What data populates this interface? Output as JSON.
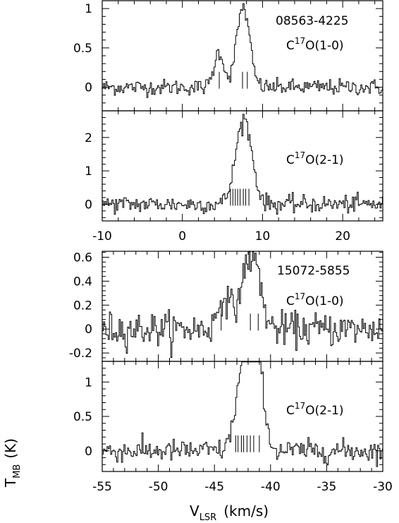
{
  "figure": {
    "y_axis_label_main": "T",
    "y_axis_label_sub": "MB",
    "y_axis_label_unit": "(K)",
    "x_axis_label_main": "V",
    "x_axis_label_sub": "LSR",
    "x_axis_label_unit": "(km/s)"
  },
  "chart_data": [
    {
      "type": "line",
      "source": "08563-4225",
      "label_pre": "C",
      "label_sup": "17",
      "label_post": "O(1-0)",
      "xlim": [
        -10,
        25
      ],
      "ylim": [
        -0.3,
        1.1
      ],
      "x_ticks": [
        -10,
        0,
        10,
        20
      ],
      "y_ticks": [
        0,
        0.5,
        1
      ],
      "y_tick_labels": [
        "0",
        "0.5",
        "1"
      ],
      "noise": 0.05,
      "gaussians": [
        {
          "center": 4.5,
          "amp": 0.45,
          "sigma": 0.6
        },
        {
          "center": 7.5,
          "amp": 1.02,
          "sigma": 0.8
        }
      ],
      "components": [
        4.6,
        7.5,
        8.1
      ]
    },
    {
      "type": "line",
      "source": "08563-4225",
      "label_pre": "C",
      "label_sup": "17",
      "label_post": "O(2-1)",
      "xlim": [
        -10,
        25
      ],
      "ylim": [
        -0.5,
        2.8
      ],
      "x_ticks": [
        -10,
        0,
        10,
        20
      ],
      "x_tick_labels": [
        "-10",
        "0",
        "10",
        "20"
      ],
      "y_ticks": [
        0,
        1,
        2
      ],
      "y_tick_labels": [
        "0",
        "1",
        "2"
      ],
      "noise": 0.13,
      "gaussians": [
        {
          "center": 7.6,
          "amp": 2.55,
          "sigma": 1.0
        }
      ],
      "components": [
        6.0,
        6.3,
        6.6,
        6.9,
        7.2,
        7.6,
        7.9,
        8.3
      ]
    },
    {
      "type": "line",
      "source": "15072-5855",
      "label_pre": "C",
      "label_sup": "17",
      "label_post": "O(1-0)",
      "xlim": [
        -55,
        -30
      ],
      "ylim": [
        -0.27,
        0.65
      ],
      "x_ticks": [
        -55,
        -50,
        -45,
        -40,
        -35,
        -30
      ],
      "y_ticks": [
        -0.2,
        0,
        0.2,
        0.4,
        0.6
      ],
      "y_tick_labels": [
        "-0.2",
        "0",
        "0.2",
        "0.4",
        "0.6"
      ],
      "noise": 0.07,
      "gaussians": [
        {
          "center": -44.2,
          "amp": 0.28,
          "sigma": 0.5
        },
        {
          "center": -42.0,
          "amp": 0.53,
          "sigma": 0.75
        },
        {
          "center": -41.2,
          "amp": 0.2,
          "sigma": 0.5
        }
      ],
      "components": [
        -44.4,
        -41.8,
        -41.1
      ]
    },
    {
      "type": "line",
      "source": "15072-5855",
      "label_pre": "C",
      "label_sup": "17",
      "label_post": "O(2-1)",
      "xlim": [
        -55,
        -30
      ],
      "ylim": [
        -0.3,
        1.3
      ],
      "x_ticks": [
        -55,
        -50,
        -45,
        -40,
        -35,
        -30
      ],
      "x_tick_labels": [
        "-55",
        "-50",
        "-45",
        "-40",
        "-35",
        "-30"
      ],
      "y_ticks": [
        0,
        0.5,
        1
      ],
      "y_tick_labels": [
        "0",
        "0.5",
        "1"
      ],
      "noise": 0.08,
      "gaussians": [
        {
          "center": -42.7,
          "amp": 0.7,
          "sigma": 0.6
        },
        {
          "center": -41.8,
          "amp": 1.15,
          "sigma": 0.7
        },
        {
          "center": -41.1,
          "amp": 0.8,
          "sigma": 0.5
        }
      ],
      "components": [
        -43.1,
        -42.9,
        -42.6,
        -42.4,
        -42.1,
        -41.8,
        -41.5,
        -41.0
      ]
    }
  ]
}
